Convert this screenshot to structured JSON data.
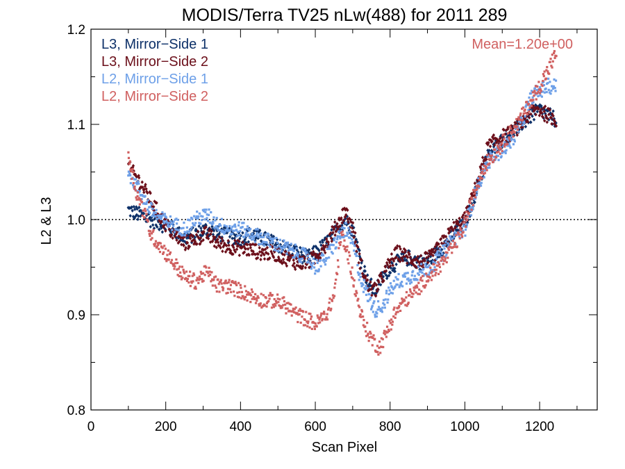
{
  "chart_data": {
    "type": "scatter",
    "title": "MODIS/Terra TV25 nLw(488) for 2011 289",
    "xlabel": "Scan Pixel",
    "ylabel": "L2 & L3",
    "xlim": [
      0,
      1354
    ],
    "ylim": [
      0.8,
      1.2
    ],
    "x_ticks": [
      "0",
      "200",
      "400",
      "600",
      "800",
      "1000",
      "1200"
    ],
    "y_ticks": [
      "0.8",
      "0.9",
      "1.0",
      "1.1",
      "1.2"
    ],
    "reference_line": 1.0,
    "annotation": "Mean=1.20e+00",
    "annotation_color": "#d06060",
    "legend_placement": "top-left",
    "series": [
      {
        "name": "L3, Mirror−Side 1",
        "color": "#0d3068",
        "marker": "diamond",
        "x": [
          100,
          130,
          160,
          190,
          220,
          250,
          280,
          310,
          340,
          370,
          400,
          430,
          460,
          490,
          520,
          550,
          580,
          600,
          630,
          660,
          680,
          700,
          720,
          740,
          760,
          780,
          800,
          820,
          850,
          880,
          910,
          940,
          970,
          1000,
          1030,
          1060,
          1090,
          1120,
          1150,
          1180,
          1200,
          1220,
          1245
        ],
        "y": [
          1.01,
          1.005,
          1.0,
          0.995,
          0.99,
          0.98,
          0.985,
          0.99,
          0.985,
          0.983,
          0.98,
          0.985,
          0.98,
          0.975,
          0.97,
          0.965,
          0.96,
          0.965,
          0.975,
          0.99,
          1.0,
          0.99,
          0.96,
          0.935,
          0.925,
          0.94,
          0.95,
          0.955,
          0.96,
          0.955,
          0.96,
          0.97,
          0.985,
          0.995,
          1.03,
          1.065,
          1.08,
          1.09,
          1.1,
          1.11,
          1.115,
          1.11,
          1.105
        ]
      },
      {
        "name": "L3, Mirror−Side 2",
        "color": "#6b0f1a",
        "marker": "diamond",
        "x": [
          100,
          130,
          160,
          190,
          220,
          250,
          280,
          310,
          340,
          370,
          400,
          430,
          460,
          490,
          520,
          550,
          580,
          600,
          630,
          660,
          680,
          700,
          720,
          740,
          760,
          780,
          800,
          820,
          850,
          880,
          910,
          940,
          970,
          1000,
          1030,
          1060,
          1090,
          1120,
          1150,
          1180,
          1200,
          1220,
          1245
        ],
        "y": [
          1.055,
          1.04,
          1.02,
          1.0,
          0.985,
          0.975,
          0.98,
          0.985,
          0.975,
          0.972,
          0.97,
          0.968,
          0.965,
          0.965,
          0.96,
          0.955,
          0.955,
          0.96,
          0.975,
          0.995,
          1.01,
          0.99,
          0.955,
          0.93,
          0.925,
          0.94,
          0.955,
          0.965,
          0.96,
          0.955,
          0.96,
          0.975,
          0.99,
          1.0,
          1.035,
          1.075,
          1.085,
          1.09,
          1.1,
          1.115,
          1.115,
          1.11,
          1.105
        ]
      },
      {
        "name": "L2, Mirror−Side 1",
        "color": "#6ea0e8",
        "marker": "square",
        "x": [
          100,
          130,
          160,
          190,
          220,
          250,
          280,
          310,
          340,
          370,
          400,
          430,
          460,
          490,
          520,
          550,
          580,
          600,
          630,
          660,
          680,
          700,
          720,
          740,
          760,
          780,
          800,
          820,
          850,
          880,
          910,
          940,
          970,
          1000,
          1030,
          1060,
          1090,
          1120,
          1150,
          1180,
          1200,
          1220,
          1245
        ],
        "y": [
          1.05,
          1.03,
          1.01,
          1.0,
          0.995,
          0.99,
          1.0,
          1.005,
          0.995,
          0.99,
          0.99,
          0.985,
          0.98,
          0.975,
          0.97,
          0.965,
          0.96,
          0.95,
          0.96,
          0.98,
          0.99,
          0.975,
          0.94,
          0.92,
          0.905,
          0.91,
          0.925,
          0.935,
          0.94,
          0.945,
          0.95,
          0.965,
          0.98,
          0.99,
          1.03,
          1.06,
          1.07,
          1.08,
          1.1,
          1.13,
          1.135,
          1.14,
          1.14
        ]
      },
      {
        "name": "L2, Mirror−Side 2",
        "color": "#d06060",
        "marker": "square",
        "x": [
          100,
          120,
          140,
          160,
          190,
          220,
          250,
          280,
          310,
          340,
          370,
          400,
          430,
          460,
          490,
          520,
          550,
          580,
          600,
          630,
          650,
          670,
          690,
          710,
          730,
          750,
          770,
          790,
          810,
          840,
          870,
          900,
          930,
          960,
          990,
          1020,
          1050,
          1080,
          1110,
          1140,
          1170,
          1200,
          1220,
          1245
        ],
        "y": [
          1.07,
          1.03,
          1.01,
          0.985,
          0.97,
          0.955,
          0.94,
          0.935,
          0.945,
          0.93,
          0.93,
          0.925,
          0.92,
          0.915,
          0.915,
          0.91,
          0.9,
          0.895,
          0.89,
          0.9,
          0.92,
          0.985,
          0.96,
          0.92,
          0.89,
          0.875,
          0.865,
          0.88,
          0.9,
          0.915,
          0.925,
          0.94,
          0.95,
          0.965,
          0.985,
          1.02,
          1.055,
          1.07,
          1.085,
          1.1,
          1.12,
          1.14,
          1.155,
          1.175
        ]
      }
    ]
  }
}
